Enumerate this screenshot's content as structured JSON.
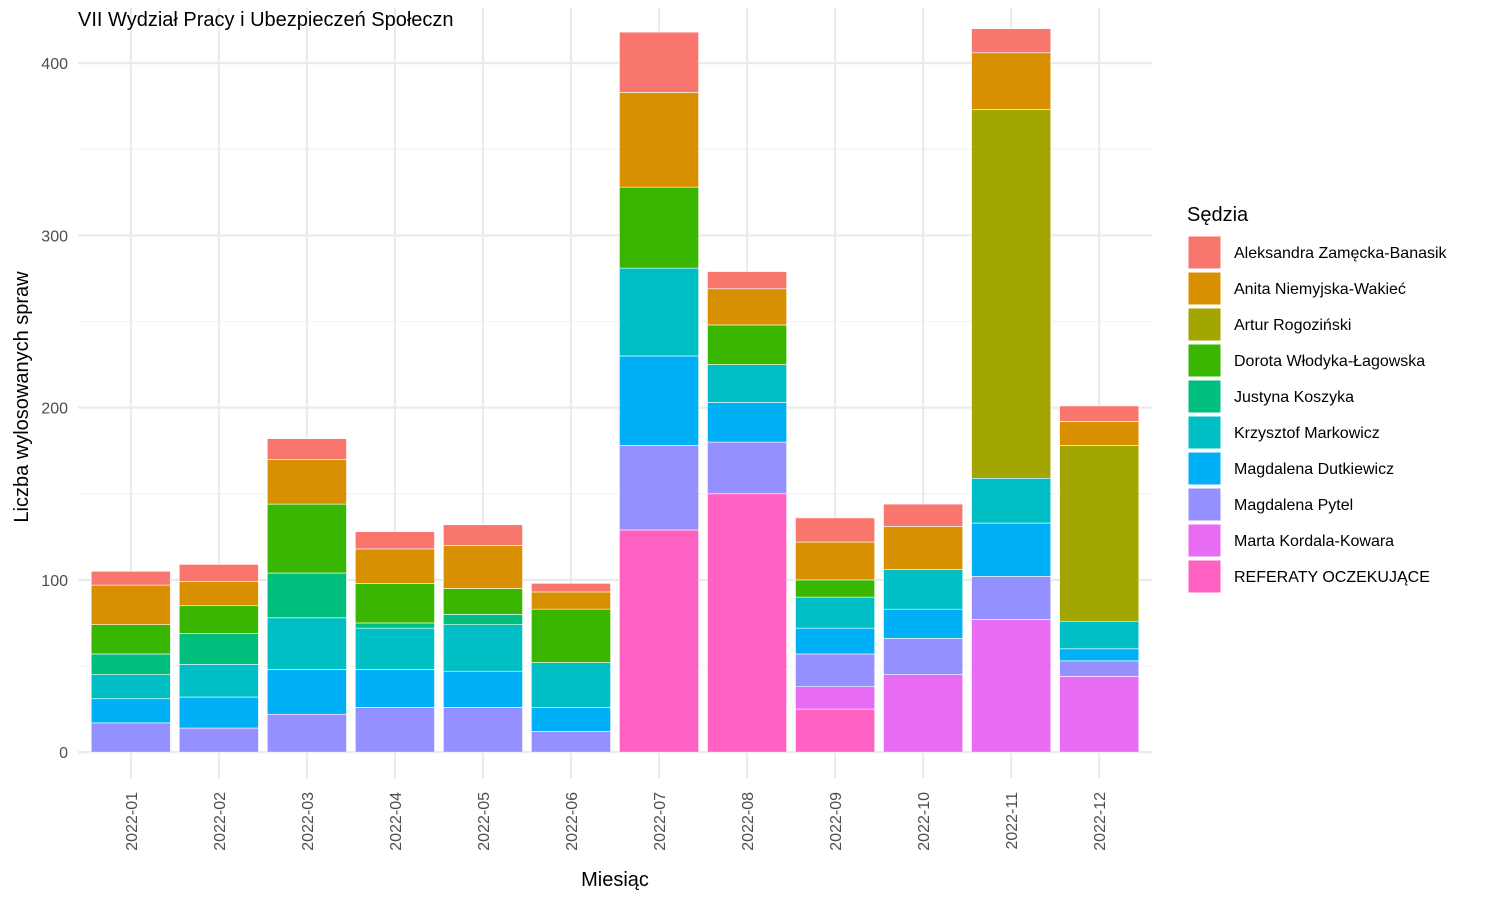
{
  "chart_data": {
    "type": "bar",
    "stacked": true,
    "title": "VII Wydział Pracy i Ubezpieczeń Społeczn",
    "xlabel": "Miesiąc",
    "ylabel": "Liczba wylosowanych spraw",
    "ylim": [
      -15,
      432
    ],
    "yticks": [
      0,
      100,
      200,
      300,
      400
    ],
    "grid": true,
    "legend_title": "Sędzia",
    "legend_position": "right",
    "categories": [
      "2022-01",
      "2022-02",
      "2022-03",
      "2022-04",
      "2022-05",
      "2022-06",
      "2022-07",
      "2022-08",
      "2022-09",
      "2022-10",
      "2022-11",
      "2022-12"
    ],
    "series": [
      {
        "name": "REFERATY OCZEKUJĄCE",
        "color": "#FF61C3",
        "values": [
          0,
          0,
          0,
          0,
          0,
          0,
          129,
          150,
          25,
          0,
          0,
          0
        ]
      },
      {
        "name": "Marta Kordala-Kowara",
        "color": "#E76BF3",
        "values": [
          0,
          0,
          0,
          0,
          0,
          0,
          0,
          0,
          13,
          45,
          77,
          44
        ]
      },
      {
        "name": "Magdalena Pytel",
        "color": "#9590FF",
        "values": [
          17,
          14,
          22,
          26,
          26,
          12,
          49,
          30,
          19,
          21,
          25,
          9
        ]
      },
      {
        "name": "Magdalena Dutkiewicz",
        "color": "#00B0F6",
        "values": [
          14,
          18,
          26,
          22,
          21,
          14,
          52,
          23,
          15,
          17,
          31,
          7
        ]
      },
      {
        "name": "Krzysztof Markowicz",
        "color": "#00BFC4",
        "values": [
          14,
          19,
          30,
          24,
          27,
          26,
          51,
          22,
          18,
          23,
          26,
          16
        ]
      },
      {
        "name": "Justyna Koszyka",
        "color": "#00BF7D",
        "values": [
          12,
          18,
          26,
          3,
          6,
          0,
          0,
          0,
          0,
          0,
          0,
          0
        ]
      },
      {
        "name": "Dorota Włodyka-Łagowska",
        "color": "#39B600",
        "values": [
          17,
          16,
          40,
          23,
          15,
          31,
          47,
          23,
          10,
          0,
          0,
          0
        ]
      },
      {
        "name": "Artur Rogoziński",
        "color": "#A3A500",
        "values": [
          0,
          0,
          0,
          0,
          0,
          0,
          0,
          0,
          0,
          0,
          214,
          102
        ]
      },
      {
        "name": "Anita Niemyjska-Wakieć",
        "color": "#D89000",
        "values": [
          23,
          14,
          26,
          20,
          25,
          10,
          55,
          21,
          22,
          25,
          33,
          14
        ]
      },
      {
        "name": "Aleksandra Zamęcka-Banasik",
        "color": "#F8766D",
        "values": [
          8,
          10,
          12,
          10,
          12,
          5,
          35,
          10,
          14,
          13,
          14,
          9
        ]
      }
    ]
  }
}
